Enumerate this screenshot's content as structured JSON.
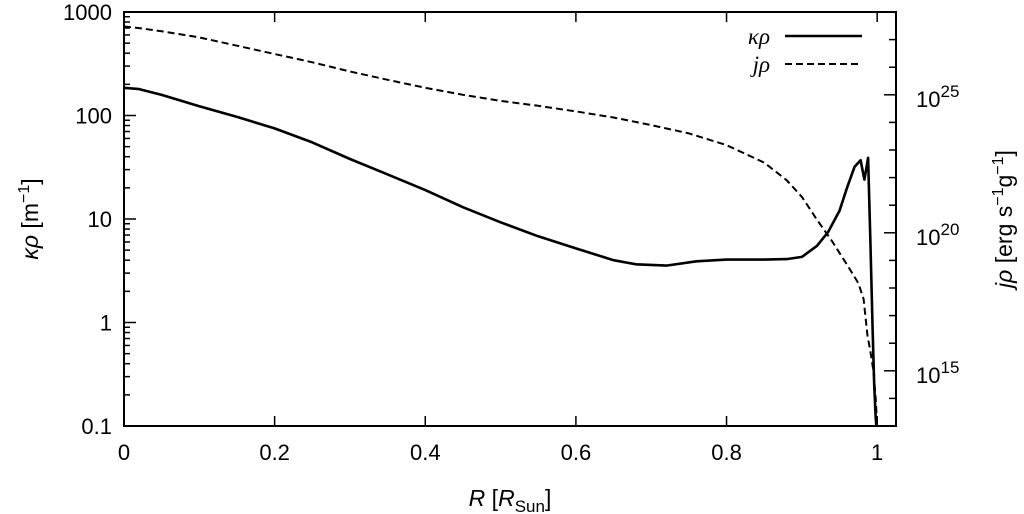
{
  "chart_data": {
    "type": "line",
    "x_axis": {
      "label_parts": [
        {
          "text": "R",
          "italic": true
        },
        {
          "text": " ["
        },
        {
          "text": "R",
          "italic": true
        },
        {
          "text": "Sun",
          "sub": true
        },
        {
          "text": "]"
        }
      ],
      "range": [
        0,
        1.025
      ],
      "ticks": [
        0,
        0.2,
        0.4,
        0.6,
        0.8,
        1
      ],
      "tick_labels": [
        "0",
        "0.2",
        "0.4",
        "0.6",
        "0.8",
        "1"
      ]
    },
    "y_left": {
      "label_parts": [
        {
          "text": "κρ",
          "italic": true
        },
        {
          "text": " [m"
        },
        {
          "text": "−1",
          "sup": true
        },
        {
          "text": "]"
        }
      ],
      "scale": "log",
      "range": [
        0.1,
        1000
      ],
      "ticks": [
        0.1,
        1,
        10,
        100,
        1000
      ],
      "tick_labels": [
        "0.1",
        "1",
        "10",
        "100",
        "1000"
      ]
    },
    "y_right": {
      "label_parts": [
        {
          "text": "jρ",
          "italic": true
        },
        {
          "text": " [erg s"
        },
        {
          "text": "−1",
          "sup": true
        },
        {
          "text": "g"
        },
        {
          "text": "−1",
          "sup": true
        },
        {
          "text": "]"
        }
      ],
      "scale": "log",
      "range": [
        10000000000000.0,
        1e+28
      ],
      "major_ticks": [
        1000000000000000.0,
        1e+20,
        1e+25
      ],
      "tick_labels": [
        {
          "base": "10",
          "exp": "15"
        },
        {
          "base": "10",
          "exp": "20"
        },
        {
          "base": "10",
          "exp": "25"
        }
      ]
    },
    "grid": false,
    "legend_position": "top-right",
    "series": [
      {
        "name": "κρ",
        "axis": "left",
        "style": "solid",
        "x": [
          0,
          0.02,
          0.05,
          0.1,
          0.15,
          0.2,
          0.25,
          0.3,
          0.35,
          0.4,
          0.45,
          0.5,
          0.55,
          0.6,
          0.65,
          0.68,
          0.72,
          0.76,
          0.8,
          0.85,
          0.88,
          0.9,
          0.92,
          0.935,
          0.95,
          0.96,
          0.97,
          0.978,
          0.983,
          0.988,
          0.991,
          0.994,
          0.996,
          0.998,
          1.0
        ],
        "y": [
          185,
          180,
          158,
          123,
          97,
          75,
          55,
          38,
          27,
          19,
          13,
          9.3,
          6.8,
          5.2,
          4.0,
          3.65,
          3.55,
          3.9,
          4.05,
          4.05,
          4.1,
          4.3,
          5.5,
          7.5,
          12,
          20,
          32,
          37,
          24,
          39,
          6,
          0.8,
          0.25,
          0.12,
          0.08
        ]
      },
      {
        "name": "jρ",
        "axis": "right",
        "style": "dashed",
        "x": [
          0,
          0.02,
          0.05,
          0.1,
          0.15,
          0.2,
          0.25,
          0.3,
          0.35,
          0.4,
          0.45,
          0.5,
          0.55,
          0.6,
          0.65,
          0.7,
          0.75,
          0.8,
          0.85,
          0.88,
          0.9,
          0.92,
          0.94,
          0.96,
          0.975,
          0.982,
          0.987,
          0.991,
          0.995,
          0.998,
          1.0
        ],
        "y": [
          3e+27,
          2.6e+27,
          2e+27,
          1.2e+27,
          6e+26,
          3e+26,
          1.5e+26,
          7e+25,
          3.5e+25,
          1.8e+25,
          1e+25,
          6e+24,
          4e+24,
          2.5e+24,
          1.5e+24,
          8e+23,
          4e+23,
          1.5e+23,
          3.5e+22,
          8e+21,
          2e+21,
          3e+20,
          5e+19,
          7e+18,
          1.5e+18,
          4e+17,
          2e+16,
          5000000000000000.0,
          1000000000000000.0,
          100000000000000.0,
          10000000000000.0
        ]
      }
    ]
  }
}
